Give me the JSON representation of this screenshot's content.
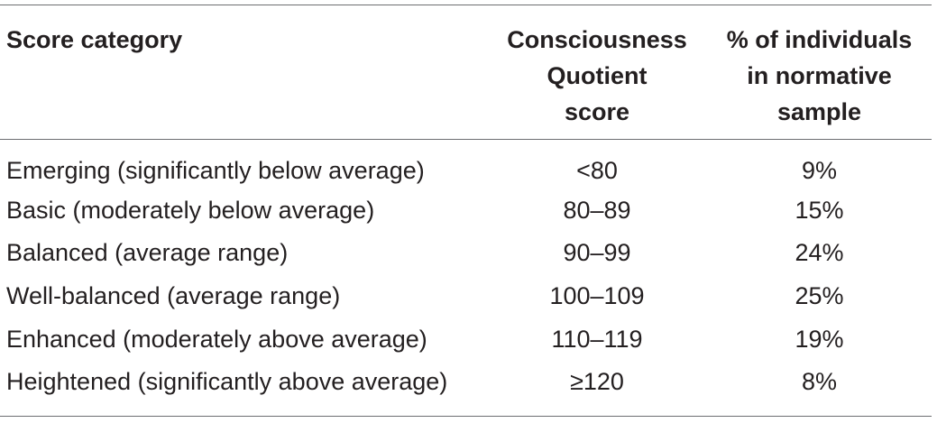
{
  "table": {
    "headers": {
      "category": [
        "Score category"
      ],
      "score": [
        "Consciousness",
        "Quotient",
        "score"
      ],
      "percent": [
        "% of individuals",
        "in normative",
        "sample"
      ]
    },
    "rows": [
      {
        "category": "Emerging (significantly below average)",
        "score": "<80",
        "percent": "9%"
      },
      {
        "category": "Basic (moderately below average)",
        "score": "80–89",
        "percent": "15%"
      },
      {
        "category": "Balanced (average range)",
        "score": "90–99",
        "percent": "24%"
      },
      {
        "category": "Well-balanced (average range)",
        "score": "100–109",
        "percent": "25%"
      },
      {
        "category": "Enhanced (moderately above average)",
        "score": "110–119",
        "percent": "19%"
      },
      {
        "category": "Heightened (significantly above average)",
        "score": "≥120",
        "percent": "8%"
      }
    ]
  },
  "colors": {
    "text": "#231f20",
    "rule": "#6d6e71",
    "background": "#ffffff"
  }
}
